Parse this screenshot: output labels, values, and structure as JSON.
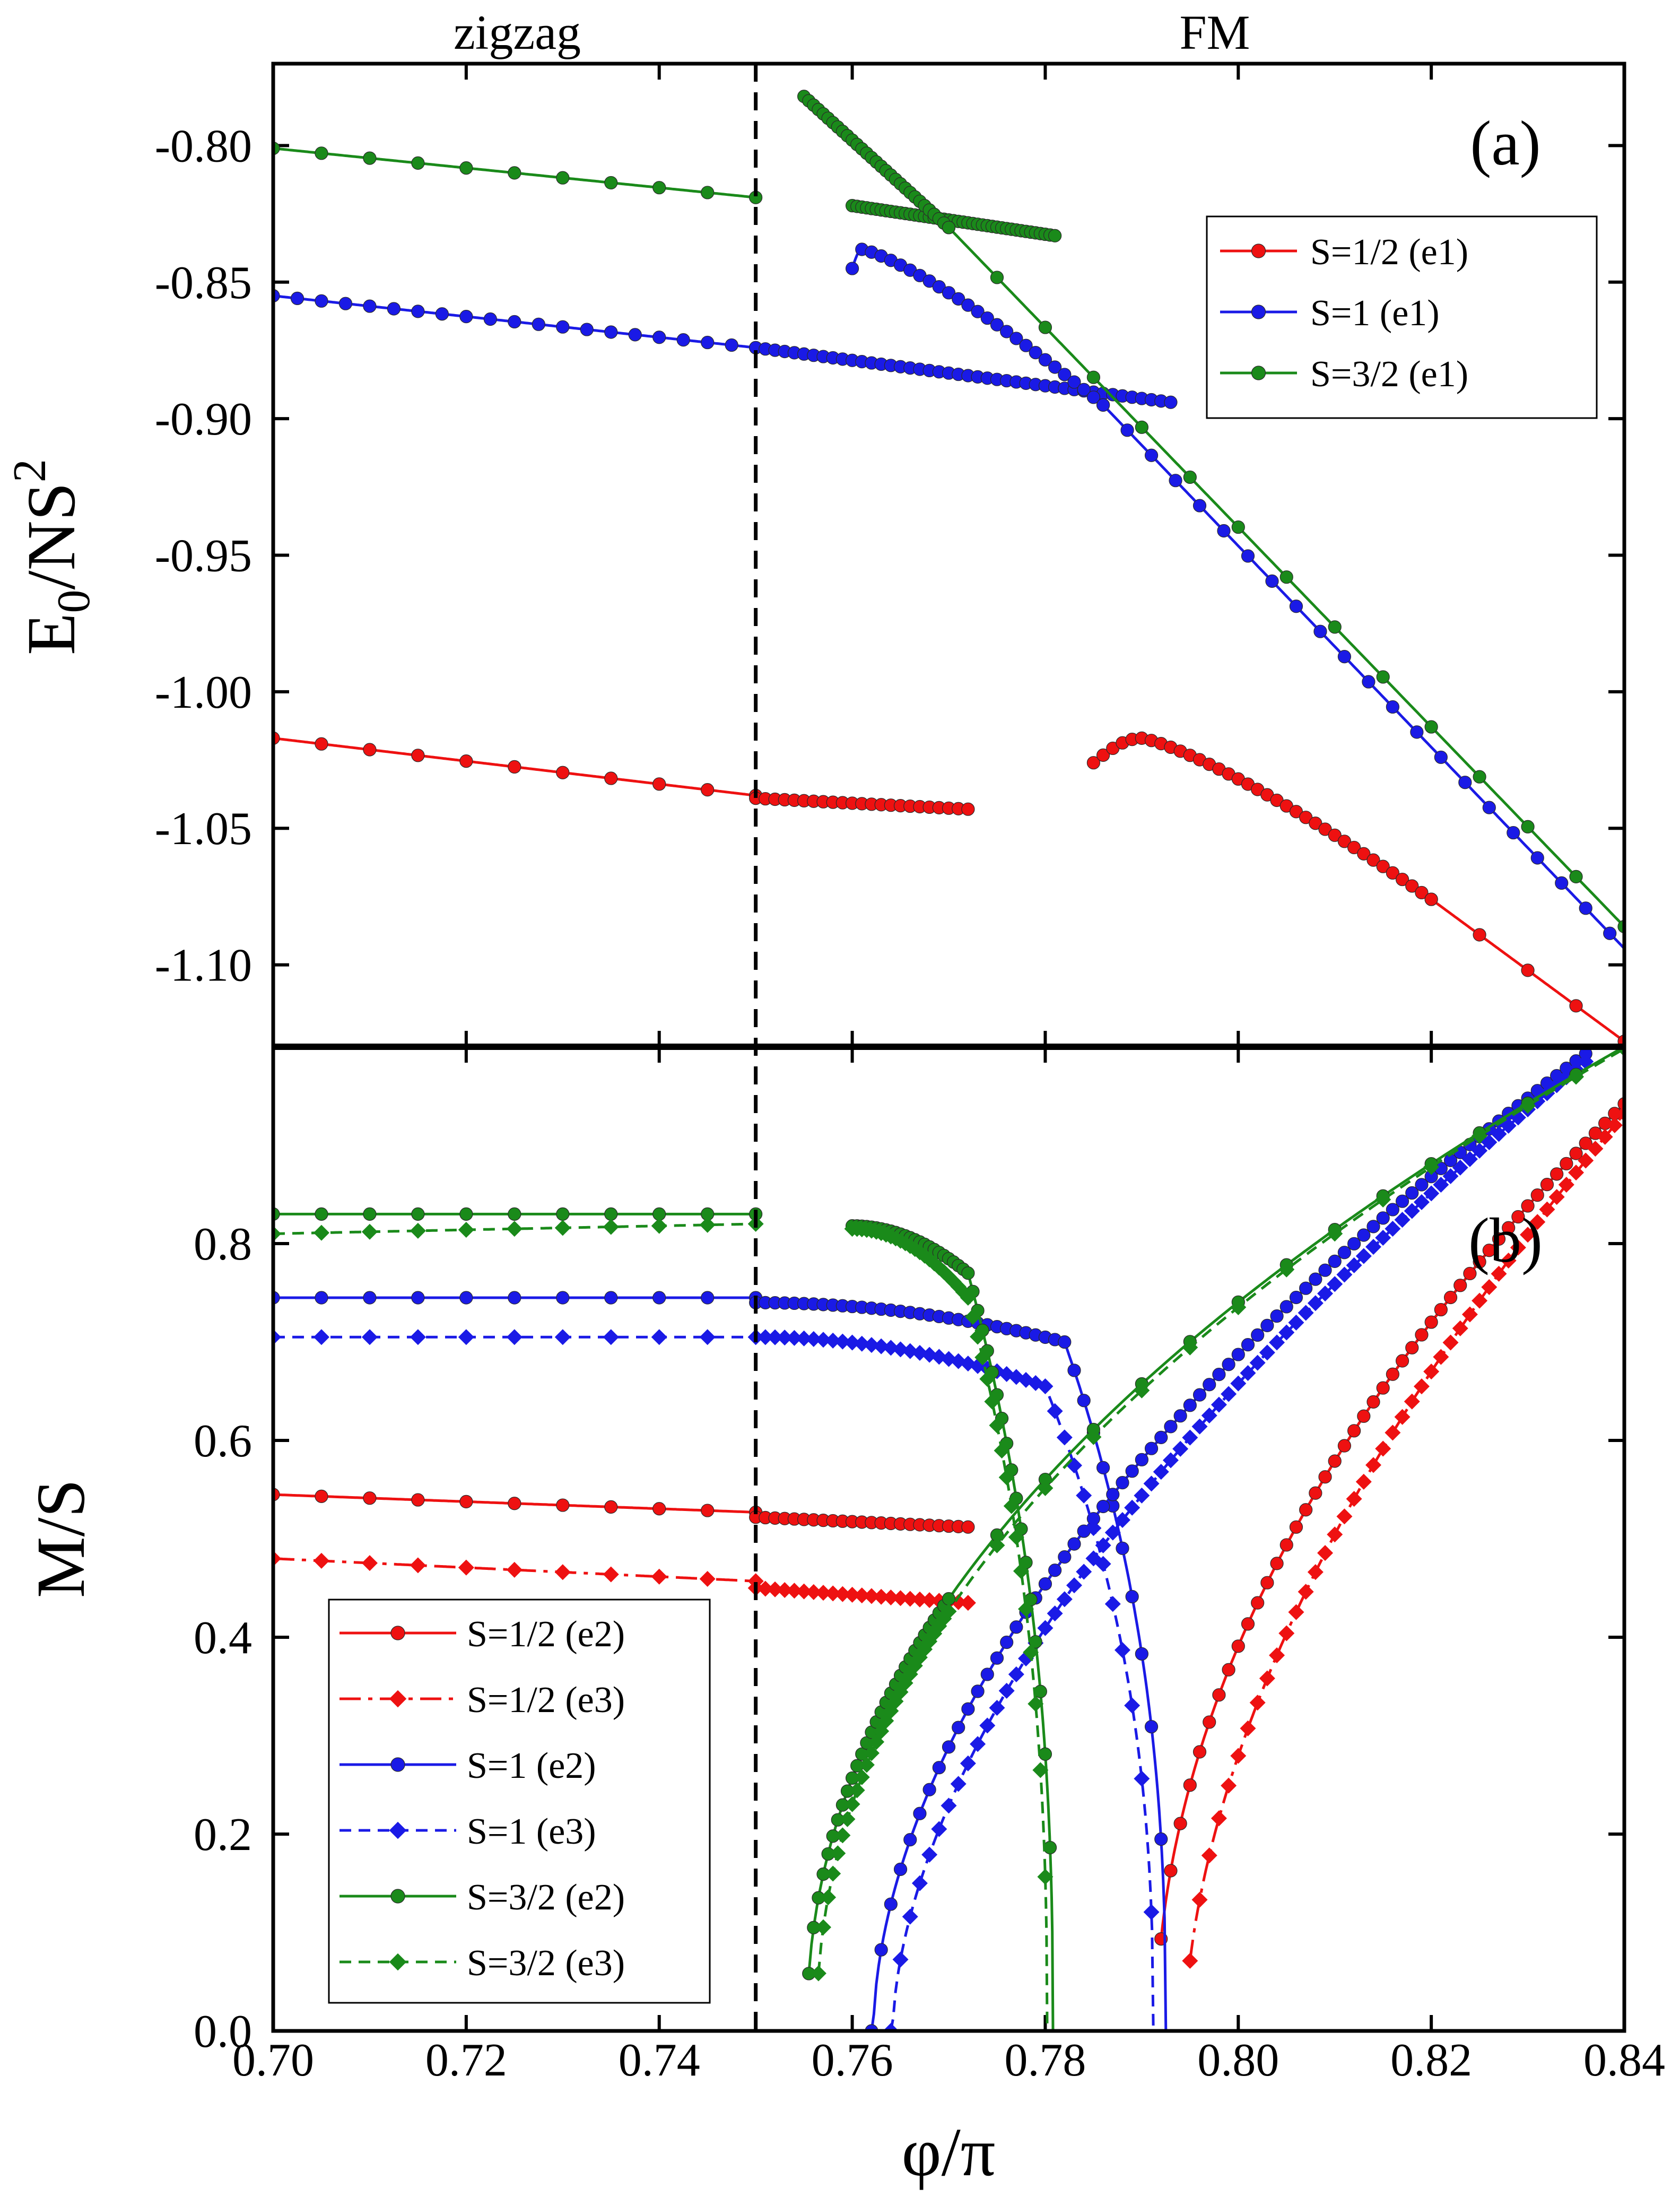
{
  "figure": {
    "region_labels": [
      "zigzag",
      "FM"
    ],
    "phase_boundary": 0.75,
    "xlabel": "φ/π",
    "xlim": [
      0.7,
      0.84
    ],
    "xticks": [
      "0.70",
      "0.72",
      "0.74",
      "0.76",
      "0.78",
      "0.80",
      "0.82",
      "0.84"
    ],
    "xtick_values": [
      0.7,
      0.72,
      0.74,
      0.76,
      0.78,
      0.8,
      0.82,
      0.84
    ]
  },
  "colors": {
    "red": "#ee1111",
    "blue": "#1a1ae6",
    "green": "#1a8a1a",
    "axis": "#000000"
  },
  "chart_data": [
    {
      "type": "line",
      "panel_label": "(a)",
      "ylabel": "E0/NS2",
      "ylabel_parts": {
        "main": "E",
        "sub": "0",
        "mid": "/NS",
        "sup": "2"
      },
      "xlim": [
        0.7,
        0.84
      ],
      "ylim": [
        -1.13,
        -0.77
      ],
      "yticks": [
        "-0.80",
        "-0.85",
        "-0.90",
        "-0.95",
        "-1.00",
        "-1.05",
        "-1.10"
      ],
      "ytick_values": [
        -0.8,
        -0.85,
        -0.9,
        -0.95,
        -1.0,
        -1.05,
        -1.1
      ],
      "legend": [
        "S=1/2 (e1)",
        "S=1 (e1)",
        "S=3/2 (e1)"
      ],
      "legend_position": "top-right",
      "series": [
        {
          "name": "S=1/2 (e1)",
          "color": "red",
          "marker": "circle",
          "dash": "solid",
          "branches": [
            {
              "x_start": 0.7,
              "x_end": 0.75,
              "step": 0.005,
              "model": "linear",
              "y_start": -1.017,
              "y_end": -1.038
            },
            {
              "x_start": 0.75,
              "x_end": 0.772,
              "step": 0.001,
              "model": "linear",
              "y_start": -1.039,
              "y_end": -1.043
            },
            {
              "x_start": 0.785,
              "x_end": 0.82,
              "step": 0.001,
              "model": "peak",
              "y_start": -1.026,
              "y_peak": -1.017,
              "x_peak": 0.79,
              "y_end": -1.076
            },
            {
              "x_start": 0.82,
              "x_end": 0.84,
              "step": 0.005,
              "model": "linear",
              "y_start": -1.076,
              "y_end": -1.128
            }
          ]
        },
        {
          "name": "S=1 (e1)",
          "color": "blue",
          "marker": "circle",
          "dash": "solid",
          "branches": [
            {
              "x_start": 0.7,
              "x_end": 0.75,
              "step": 0.0025,
              "model": "linear",
              "y_start": -0.855,
              "y_end": -0.874
            },
            {
              "x_start": 0.75,
              "x_end": 0.793,
              "step": 0.001,
              "model": "linear",
              "y_start": -0.874,
              "y_end": -0.894
            },
            {
              "x_start": 0.76,
              "x_end": 0.786,
              "step": 0.001,
              "model": "peak",
              "y_start": -0.845,
              "y_peak": -0.838,
              "x_peak": 0.761,
              "y_end": -0.895
            },
            {
              "x_start": 0.786,
              "x_end": 0.84,
              "step": 0.0025,
              "model": "linear",
              "y_start": -0.895,
              "y_end": -1.094
            }
          ]
        },
        {
          "name": "S=3/2 (e1)",
          "color": "green",
          "marker": "circle",
          "dash": "solid",
          "branches": [
            {
              "x_start": 0.7,
              "x_end": 0.75,
              "step": 0.005,
              "model": "linear",
              "y_start": -0.801,
              "y_end": -0.819
            },
            {
              "x_start": 0.76,
              "x_end": 0.781,
              "step": 0.0005,
              "model": "linear",
              "y_start": -0.822,
              "y_end": -0.833
            },
            {
              "x_start": 0.755,
              "x_end": 0.77,
              "step": 0.0005,
              "model": "linear",
              "y_start": -0.782,
              "y_end": -0.83
            },
            {
              "x_start": 0.77,
              "x_end": 0.84,
              "step": 0.005,
              "model": "linear",
              "y_start": -0.83,
              "y_end": -1.086
            }
          ]
        }
      ]
    },
    {
      "type": "line",
      "panel_label": "(b)",
      "ylabel": "M/S",
      "xlim": [
        0.7,
        0.84
      ],
      "ylim": [
        0.0,
        1.0
      ],
      "yticks": [
        "0.0",
        "0.2",
        "0.4",
        "0.6",
        "0.8"
      ],
      "ytick_values": [
        0.0,
        0.2,
        0.4,
        0.6,
        0.8
      ],
      "legend": [
        "S=1/2 (e2)",
        "S=1/2 (e3)",
        "S=1 (e2)",
        "S=1 (e3)",
        "S=3/2 (e2)",
        "S=3/2 (e3)"
      ],
      "legend_position": "bottom-left",
      "series": [
        {
          "name": "S=1/2 (e2)",
          "color": "red",
          "marker": "circle",
          "dash": "solid",
          "branches": [
            {
              "x_start": 0.7,
              "x_end": 0.75,
              "step": 0.005,
              "model": "linear",
              "y_start": 0.545,
              "y_end": 0.527
            },
            {
              "x_start": 0.75,
              "x_end": 0.772,
              "step": 0.001,
              "model": "linear",
              "y_start": 0.522,
              "y_end": 0.512
            },
            {
              "x_start": 0.792,
              "x_end": 0.84,
              "step": 0.001,
              "model": "rise",
              "x0": 0.7915,
              "y_end": 0.942,
              "k": 0.505
            }
          ]
        },
        {
          "name": "S=1/2 (e3)",
          "color": "red",
          "marker": "diamond",
          "dash": "dashdot",
          "branches": [
            {
              "x_start": 0.7,
              "x_end": 0.75,
              "step": 0.005,
              "model": "linear",
              "y_start": 0.48,
              "y_end": 0.457
            },
            {
              "x_start": 0.75,
              "x_end": 0.772,
              "step": 0.001,
              "model": "linear",
              "y_start": 0.45,
              "y_end": 0.435
            },
            {
              "x_start": 0.795,
              "x_end": 0.84,
              "step": 0.001,
              "model": "rise",
              "x0": 0.7945,
              "y_end": 0.932,
              "k": 0.57
            }
          ]
        },
        {
          "name": "S=1 (e2)",
          "color": "blue",
          "marker": "circle",
          "dash": "solid",
          "branches": [
            {
              "x_start": 0.7,
              "x_end": 0.75,
              "step": 0.005,
              "model": "linear",
              "y_start": 0.745,
              "y_end": 0.745
            },
            {
              "x_start": 0.75,
              "x_end": 0.7925,
              "step": 0.001,
              "model": "fall",
              "y_start": 0.74,
              "y_mid": 0.7,
              "x_mid": 0.782,
              "x0": 0.7925
            },
            {
              "x_start": 0.762,
              "x_end": 0.836,
              "step": 0.001,
              "model": "rise",
              "x0": 0.7622,
              "y_end": 0.993,
              "k": 0.55
            }
          ]
        },
        {
          "name": "S=1 (e3)",
          "color": "blue",
          "marker": "diamond",
          "dash": "dashed",
          "branches": [
            {
              "x_start": 0.7,
              "x_end": 0.75,
              "step": 0.005,
              "model": "linear",
              "y_start": 0.705,
              "y_end": 0.705
            },
            {
              "x_start": 0.75,
              "x_end": 0.7912,
              "step": 0.001,
              "model": "fall",
              "y_start": 0.705,
              "y_mid": 0.655,
              "x_mid": 0.78,
              "x0": 0.7912
            },
            {
              "x_start": 0.764,
              "x_end": 0.836,
              "step": 0.001,
              "model": "rise",
              "x0": 0.7642,
              "y_end": 0.985,
              "k": 0.58
            }
          ]
        },
        {
          "name": "S=3/2 (e2)",
          "color": "green",
          "marker": "circle",
          "dash": "solid",
          "branches": [
            {
              "x_start": 0.7,
              "x_end": 0.75,
              "step": 0.005,
              "model": "linear",
              "y_start": 0.83,
              "y_end": 0.83
            },
            {
              "x_start": 0.76,
              "x_end": 0.7808,
              "step": 0.0005,
              "model": "fall",
              "y_start": 0.818,
              "y_mid": 0.77,
              "x_mid": 0.772,
              "x0": 0.7808
            },
            {
              "x_start": 0.7555,
              "x_end": 0.84,
              "step": 0.0005,
              "model": "rise",
              "x0": 0.7553,
              "y_end": 1.0,
              "k": 0.47,
              "dense_until": 0.77,
              "sparse_step": 0.005
            }
          ]
        },
        {
          "name": "S=3/2 (e3)",
          "color": "green",
          "marker": "diamond",
          "dash": "dashed",
          "branches": [
            {
              "x_start": 0.7,
              "x_end": 0.75,
              "step": 0.005,
              "model": "linear",
              "y_start": 0.81,
              "y_end": 0.82
            },
            {
              "x_start": 0.76,
              "x_end": 0.7802,
              "step": 0.0005,
              "model": "fall",
              "y_start": 0.815,
              "y_mid": 0.745,
              "x_mid": 0.772,
              "x0": 0.7802
            },
            {
              "x_start": 0.7565,
              "x_end": 0.84,
              "step": 0.0005,
              "model": "rise",
              "x0": 0.7563,
              "y_end": 0.998,
              "k": 0.47,
              "dense_until": 0.77,
              "sparse_step": 0.005
            }
          ]
        }
      ]
    }
  ]
}
